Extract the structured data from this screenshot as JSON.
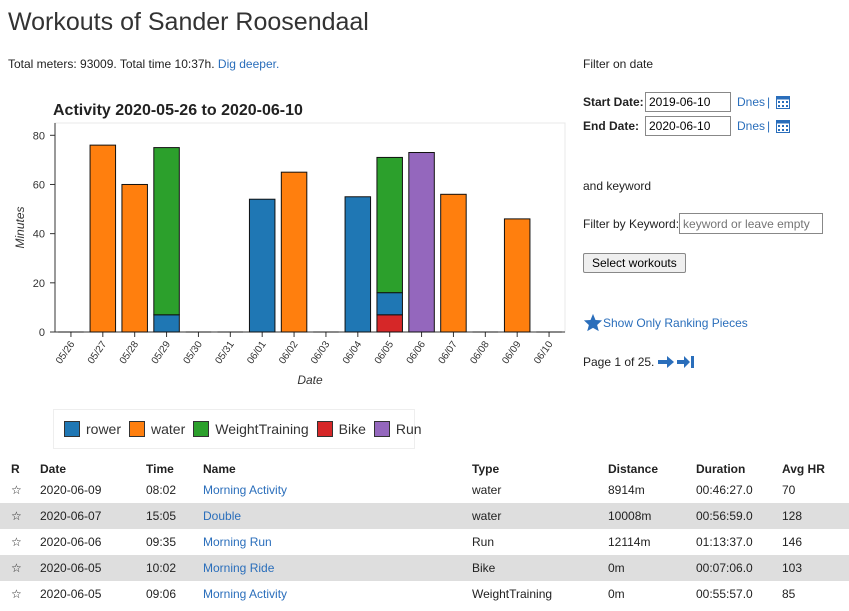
{
  "page_title": "Workouts of Sander Roosendaal",
  "summary": {
    "text": "Total meters: 93009. Total time 10:37h.",
    "link": "Dig deeper."
  },
  "filters": {
    "date_title": "Filter on date",
    "start_label": "Start Date:",
    "start_value": "2019-06-10",
    "end_label": "End Date:",
    "end_value": "2020-06-10",
    "dnes_label": "Dnes",
    "separator": "|",
    "keyword_title": "and keyword",
    "keyword_label": "Filter by Keyword:",
    "keyword_placeholder": "keyword or leave empty",
    "select_button": "Select workouts",
    "ranking_link": "Show Only Ranking Pieces",
    "page_text": "Page 1 of 25."
  },
  "legend": [
    {
      "name": "rower",
      "color": "#1f77b4"
    },
    {
      "name": "water",
      "color": "#ff7f0e"
    },
    {
      "name": "WeightTraining",
      "color": "#2ca02c"
    },
    {
      "name": "Bike",
      "color": "#d62728"
    },
    {
      "name": "Run",
      "color": "#9467bd"
    }
  ],
  "chart_data": {
    "type": "bar",
    "title": "Activity 2020-05-26 to 2020-06-10",
    "xlabel": "Date",
    "ylabel": "Minutes",
    "ylim": [
      0,
      85
    ],
    "yticks": [
      0,
      20,
      40,
      60,
      80
    ],
    "stacked": true,
    "categories": [
      "05/26",
      "05/27",
      "05/28",
      "05/29",
      "05/30",
      "05/31",
      "06/01",
      "06/02",
      "06/03",
      "06/04",
      "06/05",
      "06/06",
      "06/07",
      "06/08",
      "06/09",
      "06/10"
    ],
    "series": [
      {
        "name": "Bike",
        "color": "#d62728",
        "values": [
          0,
          0,
          0,
          0,
          0,
          0,
          0,
          0,
          0,
          0,
          7,
          0,
          0,
          0,
          0,
          0
        ]
      },
      {
        "name": "rower",
        "color": "#1f77b4",
        "values": [
          0,
          0,
          0,
          7,
          0,
          0,
          54,
          0,
          0,
          55,
          9,
          0,
          0,
          0,
          0,
          0
        ]
      },
      {
        "name": "WeightTraining",
        "color": "#2ca02c",
        "values": [
          0,
          0,
          0,
          68,
          0,
          0,
          0,
          0,
          0,
          0,
          55,
          0,
          0,
          0,
          0,
          0
        ]
      },
      {
        "name": "water",
        "color": "#ff7f0e",
        "values": [
          0,
          76,
          60,
          0,
          0,
          0,
          0,
          65,
          0,
          0,
          0,
          0,
          56,
          0,
          46,
          0
        ]
      },
      {
        "name": "Run",
        "color": "#9467bd",
        "values": [
          0,
          0,
          0,
          0,
          0,
          0,
          0,
          0,
          0,
          0,
          0,
          73,
          0,
          0,
          0,
          0
        ]
      }
    ]
  },
  "table": {
    "headers": [
      "R",
      "Date",
      "Time",
      "Name",
      "Type",
      "Distance",
      "Duration",
      "Avg HR"
    ],
    "rows": [
      {
        "star": "☆",
        "date": "2020-06-09",
        "time": "08:02",
        "name": "Morning Activity",
        "type": "water",
        "distance": "8914m",
        "duration": "00:46:27.0",
        "hr": "70"
      },
      {
        "star": "☆",
        "date": "2020-06-07",
        "time": "15:05",
        "name": "Double",
        "type": "water",
        "distance": "10008m",
        "duration": "00:56:59.0",
        "hr": "128"
      },
      {
        "star": "☆",
        "date": "2020-06-06",
        "time": "09:35",
        "name": "Morning Run",
        "type": "Run",
        "distance": "12114m",
        "duration": "01:13:37.0",
        "hr": "146"
      },
      {
        "star": "☆",
        "date": "2020-06-05",
        "time": "10:02",
        "name": "Morning Ride",
        "type": "Bike",
        "distance": "0m",
        "duration": "00:07:06.0",
        "hr": "103"
      },
      {
        "star": "☆",
        "date": "2020-06-05",
        "time": "09:06",
        "name": "Morning Activity",
        "type": "WeightTraining",
        "distance": "0m",
        "duration": "00:55:57.0",
        "hr": "85"
      }
    ]
  }
}
